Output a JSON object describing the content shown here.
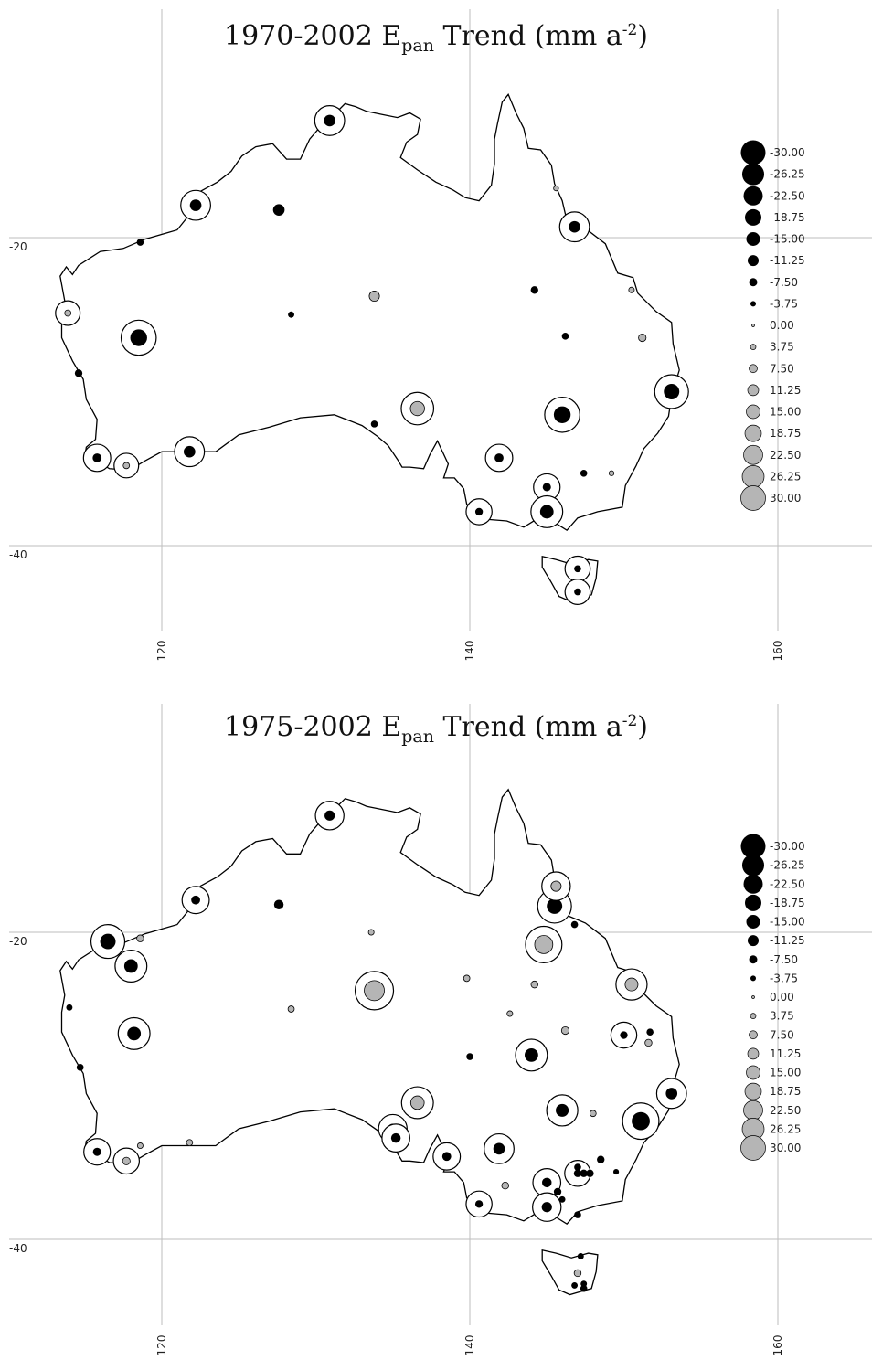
{
  "maps": [
    {
      "title_prefix": "1970-2002 E",
      "title_sub": "pan",
      "title_mid": " Trend (mm a",
      "title_sup": "-2",
      "title_suffix": ")",
      "lat_labels": [
        "-20",
        "-40"
      ],
      "lon_labels": [
        "120",
        "140",
        "160"
      ],
      "legend": [
        "-30.00",
        "-26.25",
        "-22.50",
        "-18.75",
        "-15.00",
        "-11.25",
        "-7.50",
        "-3.75",
        "0.00",
        "3.75",
        "7.50",
        "11.25",
        "15.00",
        "18.75",
        "22.50",
        "26.25",
        "30.00"
      ],
      "stations": [
        {
          "lon": 130.9,
          "lat": -12.4,
          "v": -12,
          "sig": true
        },
        {
          "lon": 122.2,
          "lat": -17.9,
          "v": -12,
          "sig": true
        },
        {
          "lon": 127.6,
          "lat": -18.2,
          "v": -12,
          "sig": false
        },
        {
          "lon": 118.6,
          "lat": -20.3,
          "v": -5,
          "sig": false
        },
        {
          "lon": 146.8,
          "lat": -19.3,
          "v": -12,
          "sig": true
        },
        {
          "lon": 145.6,
          "lat": -16.8,
          "v": 2,
          "sig": false
        },
        {
          "lon": 113.9,
          "lat": -24.9,
          "v": 4,
          "sig": true
        },
        {
          "lon": 118.5,
          "lat": -26.5,
          "v": -20,
          "sig": true
        },
        {
          "lon": 128.4,
          "lat": -25.0,
          "v": -4,
          "sig": false
        },
        {
          "lon": 133.8,
          "lat": -23.8,
          "v": 10,
          "sig": false
        },
        {
          "lon": 144.2,
          "lat": -23.4,
          "v": -6,
          "sig": false
        },
        {
          "lon": 146.2,
          "lat": -26.4,
          "v": -5,
          "sig": false
        },
        {
          "lon": 150.5,
          "lat": -23.4,
          "v": 3,
          "sig": false
        },
        {
          "lon": 151.2,
          "lat": -26.5,
          "v": 6,
          "sig": false
        },
        {
          "lon": 114.6,
          "lat": -28.8,
          "v": -6,
          "sig": false
        },
        {
          "lon": 136.6,
          "lat": -31.1,
          "v": 16,
          "sig": true
        },
        {
          "lon": 146.0,
          "lat": -31.5,
          "v": -20,
          "sig": true
        },
        {
          "lon": 153.1,
          "lat": -30.0,
          "v": -18,
          "sig": true
        },
        {
          "lon": 133.8,
          "lat": -32.1,
          "v": -5,
          "sig": false
        },
        {
          "lon": 115.8,
          "lat": -34.3,
          "v": -8,
          "sig": true
        },
        {
          "lon": 117.7,
          "lat": -34.8,
          "v": 4,
          "sig": true
        },
        {
          "lon": 121.8,
          "lat": -33.9,
          "v": -12,
          "sig": true
        },
        {
          "lon": 141.9,
          "lat": -34.3,
          "v": -8,
          "sig": true
        },
        {
          "lon": 147.4,
          "lat": -35.3,
          "v": -5,
          "sig": false
        },
        {
          "lon": 149.2,
          "lat": -35.3,
          "v": 2,
          "sig": false
        },
        {
          "lon": 145.0,
          "lat": -36.2,
          "v": -7,
          "sig": true
        },
        {
          "lon": 140.6,
          "lat": -37.8,
          "v": -6,
          "sig": true
        },
        {
          "lon": 145.0,
          "lat": -37.8,
          "v": -15,
          "sig": true
        },
        {
          "lon": 147.0,
          "lat": -41.5,
          "v": -5,
          "sig": true
        },
        {
          "lon": 147.0,
          "lat": -43.0,
          "v": -5,
          "sig": true
        }
      ]
    },
    {
      "title_prefix": "1975-2002 E",
      "title_sub": "pan",
      "title_mid": " Trend (mm a",
      "title_sup": "-2",
      "title_suffix": ")",
      "lat_labels": [
        "-20",
        "-40"
      ],
      "lon_labels": [
        "120",
        "140",
        "160"
      ],
      "legend": [
        "-30.00",
        "-26.25",
        "-22.50",
        "-18.75",
        "-15.00",
        "-11.25",
        "-7.50",
        "-3.75",
        "0.00",
        "3.75",
        "7.50",
        "11.25",
        "15.00",
        "18.75",
        "22.50",
        "26.25",
        "30.00"
      ],
      "stations": [
        {
          "lon": 130.9,
          "lat": -12.4,
          "v": -10,
          "sig": true
        },
        {
          "lon": 122.2,
          "lat": -17.9,
          "v": -8,
          "sig": true
        },
        {
          "lon": 127.6,
          "lat": -18.2,
          "v": -9,
          "sig": false
        },
        {
          "lon": 145.5,
          "lat": -18.3,
          "v": -18,
          "sig": true
        },
        {
          "lon": 145.6,
          "lat": -17.0,
          "v": 10,
          "sig": true
        },
        {
          "lon": 146.8,
          "lat": -19.5,
          "v": -5,
          "sig": false
        },
        {
          "lon": 116.5,
          "lat": -20.6,
          "v": -18,
          "sig": true
        },
        {
          "lon": 118.6,
          "lat": -20.4,
          "v": 5,
          "sig": false
        },
        {
          "lon": 118.0,
          "lat": -22.2,
          "v": -15,
          "sig": true
        },
        {
          "lon": 133.6,
          "lat": -20.0,
          "v": 3,
          "sig": false
        },
        {
          "lon": 144.8,
          "lat": -20.8,
          "v": 22,
          "sig": true
        },
        {
          "lon": 133.8,
          "lat": -23.8,
          "v": 25,
          "sig": true
        },
        {
          "lon": 139.8,
          "lat": -23.0,
          "v": 4,
          "sig": false
        },
        {
          "lon": 144.2,
          "lat": -23.4,
          "v": 5,
          "sig": false
        },
        {
          "lon": 150.5,
          "lat": -23.4,
          "v": 14,
          "sig": true
        },
        {
          "lon": 114.0,
          "lat": -24.9,
          "v": -4,
          "sig": false
        },
        {
          "lon": 128.4,
          "lat": -25.0,
          "v": 4,
          "sig": false
        },
        {
          "lon": 142.6,
          "lat": -25.3,
          "v": 3,
          "sig": false
        },
        {
          "lon": 118.2,
          "lat": -26.6,
          "v": -15,
          "sig": true
        },
        {
          "lon": 146.2,
          "lat": -26.4,
          "v": 6,
          "sig": false
        },
        {
          "lon": 150.0,
          "lat": -26.7,
          "v": -6,
          "sig": true
        },
        {
          "lon": 151.7,
          "lat": -26.5,
          "v": -5,
          "sig": false
        },
        {
          "lon": 151.6,
          "lat": -27.2,
          "v": 5,
          "sig": false
        },
        {
          "lon": 140.0,
          "lat": -28.1,
          "v": -5,
          "sig": false
        },
        {
          "lon": 144.0,
          "lat": -28.0,
          "v": -15,
          "sig": true
        },
        {
          "lon": 114.7,
          "lat": -28.8,
          "v": -5,
          "sig": false
        },
        {
          "lon": 153.1,
          "lat": -30.5,
          "v": -12,
          "sig": true
        },
        {
          "lon": 136.6,
          "lat": -31.1,
          "v": 15,
          "sig": true
        },
        {
          "lon": 146.0,
          "lat": -31.6,
          "v": -14,
          "sig": true
        },
        {
          "lon": 148.0,
          "lat": -31.8,
          "v": 4,
          "sig": false
        },
        {
          "lon": 151.1,
          "lat": -32.3,
          "v": -22,
          "sig": true
        },
        {
          "lon": 135.0,
          "lat": -32.8,
          "v": -10,
          "sig": true
        },
        {
          "lon": 135.2,
          "lat": -33.4,
          "v": -9,
          "sig": true
        },
        {
          "lon": 121.8,
          "lat": -33.7,
          "v": 4,
          "sig": false
        },
        {
          "lon": 118.6,
          "lat": -33.9,
          "v": 3,
          "sig": false
        },
        {
          "lon": 115.8,
          "lat": -34.3,
          "v": -7,
          "sig": true
        },
        {
          "lon": 117.7,
          "lat": -34.9,
          "v": 6,
          "sig": true
        },
        {
          "lon": 138.5,
          "lat": -34.6,
          "v": -8,
          "sig": true
        },
        {
          "lon": 141.9,
          "lat": -34.1,
          "v": -12,
          "sig": true
        },
        {
          "lon": 148.5,
          "lat": -34.8,
          "v": -6,
          "sig": false
        },
        {
          "lon": 147.0,
          "lat": -35.7,
          "v": -6,
          "sig": true
        },
        {
          "lon": 147.4,
          "lat": -35.7,
          "v": -6,
          "sig": false
        },
        {
          "lon": 147.8,
          "lat": -35.7,
          "v": -6,
          "sig": false
        },
        {
          "lon": 147.0,
          "lat": -35.3,
          "v": -5,
          "sig": false
        },
        {
          "lon": 149.5,
          "lat": -35.6,
          "v": -3,
          "sig": false
        },
        {
          "lon": 142.3,
          "lat": -36.5,
          "v": 5,
          "sig": false
        },
        {
          "lon": 145.0,
          "lat": -36.3,
          "v": -9,
          "sig": true
        },
        {
          "lon": 145.7,
          "lat": -36.9,
          "v": -6,
          "sig": false
        },
        {
          "lon": 146.0,
          "lat": -37.4,
          "v": -4,
          "sig": false
        },
        {
          "lon": 140.6,
          "lat": -37.7,
          "v": -6,
          "sig": true
        },
        {
          "lon": 145.0,
          "lat": -37.9,
          "v": -10,
          "sig": true
        },
        {
          "lon": 147.0,
          "lat": -38.4,
          "v": -5,
          "sig": false
        },
        {
          "lon": 147.2,
          "lat": -41.1,
          "v": -4,
          "sig": false
        },
        {
          "lon": 147.0,
          "lat": -42.2,
          "v": 5,
          "sig": false
        },
        {
          "lon": 147.4,
          "lat": -42.9,
          "v": -4,
          "sig": false
        },
        {
          "lon": 146.8,
          "lat": -43.0,
          "v": -4,
          "sig": false
        },
        {
          "lon": 147.4,
          "lat": -43.2,
          "v": -5,
          "sig": false
        }
      ]
    }
  ]
}
